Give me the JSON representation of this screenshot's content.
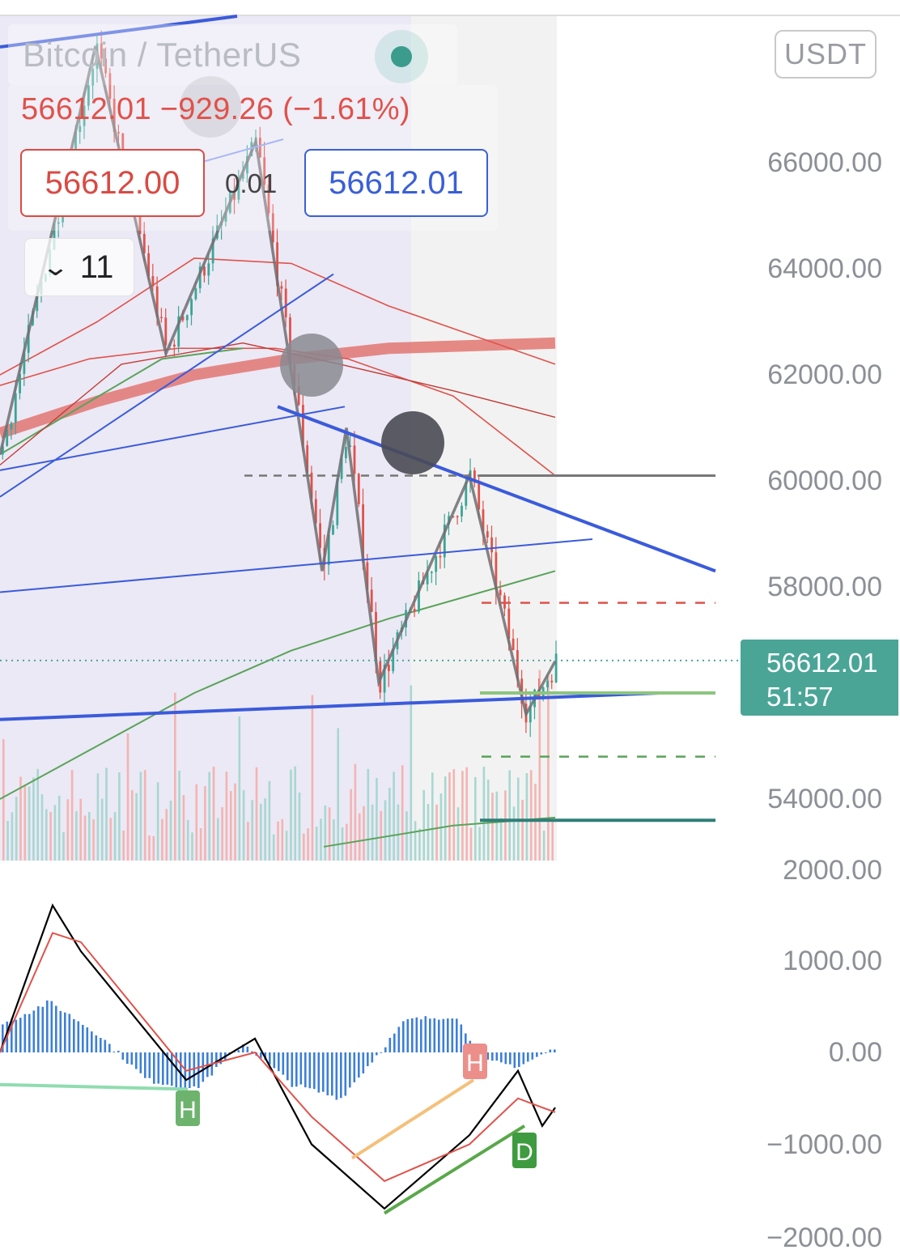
{
  "header": {
    "title": "Bitcoin / TetherUS",
    "change_line": "56612.01 −929.26 (−1.61%)",
    "sell_price": "56612.00",
    "spread": "0.01",
    "buy_price": "56612.01",
    "indicator_count": "11",
    "currency": "USDT"
  },
  "colors": {
    "up": "#26a69a",
    "down": "#ef5350",
    "trendline": "#3b5bdb",
    "last_price_tag": "#4aa597",
    "macd_line": "#000000",
    "signal_line": "#e0524b",
    "hist": "#3d7fd8"
  },
  "price_axis": {
    "labels": [
      "66000.00",
      "64000.00",
      "62000.00",
      "60000.00",
      "58000.00",
      "54000.00"
    ],
    "last_price": "56612.01",
    "countdown": "51:57"
  },
  "macd_axis": {
    "labels": [
      "2000.00",
      "1000.00",
      "0.00",
      "−1000.00",
      "−2000.00"
    ],
    "markers": [
      "H",
      "H",
      "D"
    ]
  },
  "chart_data": [
    {
      "type": "candlestick",
      "title": "Bitcoin / TetherUS",
      "ylabel": "USDT",
      "ylim": [
        52600,
        68200
      ],
      "last_price": 56612.01,
      "levels": {
        "resistance_dashed": 60100,
        "stop_dashed_red": 57700,
        "target_dashed_green": 54800,
        "support_green": 56000,
        "lower_support": 53600
      },
      "zigzag_pivots": [
        68200,
        62400,
        66400,
        61400,
        60900,
        58300,
        61000,
        56200,
        60100,
        55600,
        56600
      ],
      "trendlines": [
        {
          "name": "upper-descending",
          "from": 61400,
          "to": 58300
        },
        {
          "name": "lower-rising",
          "from": 55500,
          "to": 56000
        },
        {
          "name": "middle-rising",
          "from": 57900,
          "to": 58900
        }
      ],
      "moving_averages": [
        {
          "name": "ma-red-thick",
          "values": [
            60900,
            61500,
            62000,
            62300,
            62500,
            62600
          ]
        },
        {
          "name": "ma-green-slow",
          "values": [
            54000,
            55000,
            56000,
            56800,
            57400,
            58300
          ]
        },
        {
          "name": "ma-red-fast",
          "values": [
            62000,
            63000,
            64200,
            64100,
            63300,
            62200
          ]
        }
      ]
    },
    {
      "type": "line",
      "title": "",
      "ylim": [
        -2000,
        2000
      ],
      "series": [
        {
          "values": [
            0,
            1600,
            1100,
            -300,
            150,
            -1000,
            -1700,
            -900,
            -200,
            -800,
            -600
          ]
        },
        {
          "values": [
            0,
            1300,
            1200,
            -200,
            0,
            -700,
            -1400,
            -1000,
            -500,
            -600,
            -650
          ]
        }
      ],
      "histogram": [
        300,
        550,
        200,
        -300,
        -400,
        100,
        -350,
        -500,
        350,
        400,
        -100,
        -150,
        50
      ]
    }
  ]
}
